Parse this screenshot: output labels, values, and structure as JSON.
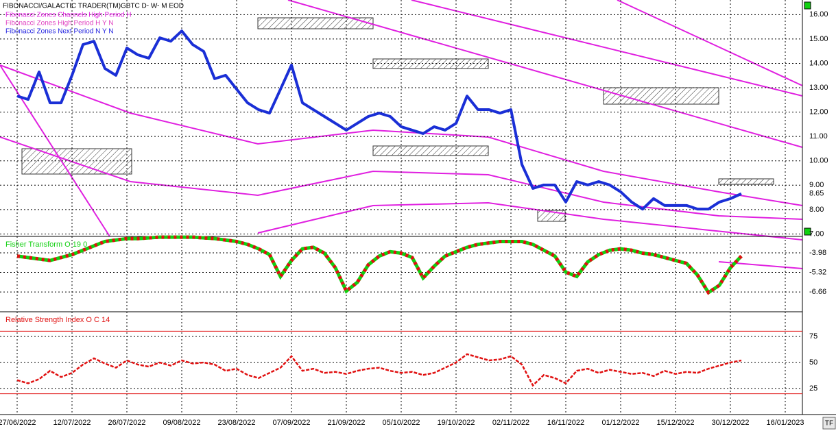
{
  "chart_data": [
    {
      "type": "line",
      "title": "FIBONACCI/GALACTIC TRADER(TM)",
      "subtitle": "GBTC D- W- M EOD",
      "annotations": [
        {
          "text": "Fibonacci Zones Channels High Period H",
          "color": "#e020e0"
        },
        {
          "text": "Fibonacci Zones High Period H Y N",
          "color": "#e040c0"
        },
        {
          "text": "Fibonacci Zones Next Period N Y N",
          "color": "#2020e0"
        }
      ],
      "color": "#1a2fd6",
      "values": [
        12.66,
        12.52,
        13.65,
        12.38,
        12.38,
        13.51,
        14.77,
        14.91,
        13.79,
        13.51,
        14.63,
        14.35,
        14.21,
        15.05,
        14.91,
        15.33,
        14.77,
        14.49,
        13.37,
        13.51,
        12.94,
        12.38,
        12.1,
        11.96,
        12.94,
        13.93,
        12.38,
        12.1,
        11.82,
        11.54,
        11.26,
        11.54,
        11.82,
        11.96,
        11.82,
        11.4,
        11.26,
        11.12,
        11.4,
        11.26,
        11.54,
        12.66,
        12.1,
        12.1,
        11.96,
        12.1,
        9.85,
        8.87,
        9.01,
        9.01,
        8.31,
        9.15,
        9.01,
        9.15,
        9.01,
        8.73,
        8.31,
        8.02,
        8.45,
        8.17,
        8.17,
        8.17,
        8.02,
        8.02,
        8.31,
        8.45,
        8.65,
        null,
        null,
        null,
        null,
        null
      ],
      "ylim": [
        6.9,
        16.6
      ],
      "yticks": [
        {
          "value": 7,
          "label": "7.00"
        },
        {
          "value": 8,
          "label": "8.00"
        },
        {
          "value": 9,
          "label": "9.00"
        },
        {
          "value": 10,
          "label": "10.00"
        },
        {
          "value": 11,
          "label": "11.00"
        },
        {
          "value": 12,
          "label": "12.00"
        },
        {
          "value": 13,
          "label": "13.00"
        },
        {
          "value": 14,
          "label": "14.00"
        },
        {
          "value": 15,
          "label": "15.00"
        },
        {
          "value": 16,
          "label": "16.00"
        }
      ],
      "grid": true
    },
    {
      "type": "line",
      "series": [
        {
          "name": "Fisher Transform O 19 0",
          "color": "#10d010",
          "down_color": "#e01010",
          "values": [
            -4.2,
            -4.3,
            -4.4,
            -4.5,
            -4.3,
            -4.1,
            -3.8,
            -3.5,
            -3.2,
            -3.1,
            -3.0,
            -3.0,
            -2.95,
            -2.9,
            -2.9,
            -2.9,
            -2.9,
            -2.95,
            -3.0,
            -3.1,
            -3.2,
            -3.4,
            -3.7,
            -4.1,
            -5.6,
            -4.5,
            -3.7,
            -3.6,
            -4.0,
            -5.0,
            -6.6,
            -6.0,
            -4.8,
            -4.2,
            -3.9,
            -4.0,
            -4.3,
            -5.7,
            -4.9,
            -4.2,
            -3.9,
            -3.6,
            -3.4,
            -3.3,
            -3.2,
            -3.2,
            -3.2,
            -3.4,
            -3.8,
            -4.2,
            -5.3,
            -5.6,
            -4.6,
            -4.1,
            -3.8,
            -3.7,
            -3.8,
            -4.0,
            -4.1,
            -4.3,
            -4.5,
            -4.7,
            -5.5,
            -6.7,
            -6.2,
            -5.0,
            -4.2,
            null,
            null,
            null,
            null,
            null
          ]
        }
      ],
      "ylim": [
        -8.02,
        -2.85
      ],
      "yticks": [
        -3.98,
        -5.32,
        -6.66
      ],
      "grid": true
    },
    {
      "type": "line",
      "categories": [
        "27/06/2022",
        null,
        null,
        null,
        null,
        "12/07/2022",
        null,
        null,
        null,
        null,
        "26/07/2022",
        null,
        null,
        null,
        null,
        "09/08/2022",
        null,
        null,
        null,
        null,
        "23/08/2022",
        null,
        null,
        null,
        null,
        "07/09/2022",
        null,
        null,
        null,
        null,
        "21/09/2022",
        null,
        null,
        null,
        null,
        "05/10/2022",
        null,
        null,
        null,
        null,
        "19/10/2022",
        null,
        null,
        null,
        null,
        "02/11/2022",
        null,
        null,
        null,
        null,
        "16/11/2022",
        null,
        null,
        null,
        null,
        "01/12/2022",
        null,
        null,
        null,
        null,
        "15/12/2022",
        null,
        null,
        null,
        null,
        "30/12/2022",
        null,
        null,
        null,
        null,
        "16/01/2023",
        null
      ],
      "series": [
        {
          "name": "Relative Strength Index O C 14",
          "color": "#e01010",
          "values": [
            33,
            30,
            34,
            42,
            36,
            40,
            48,
            54,
            49,
            45,
            52,
            48,
            46,
            50,
            47,
            52,
            49,
            50,
            48,
            42,
            44,
            38,
            35,
            40,
            45,
            56,
            42,
            44,
            40,
            41,
            39,
            42,
            44,
            45,
            42,
            40,
            41,
            38,
            40,
            45,
            50,
            58,
            55,
            52,
            53,
            56,
            48,
            28,
            38,
            35,
            30,
            42,
            44,
            40,
            43,
            41,
            39,
            40,
            37,
            42,
            39,
            41,
            40,
            44,
            47,
            50,
            52,
            null,
            null,
            null,
            null,
            null
          ]
        }
      ],
      "levels": [
        20,
        80
      ],
      "ylim": [
        0,
        98.7
      ],
      "yticks": [
        25,
        50,
        75
      ],
      "grid": true
    }
  ]
}
